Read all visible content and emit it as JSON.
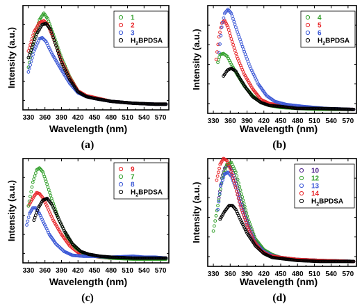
{
  "chart_data": [
    {
      "type": "scatter",
      "panel_label": "(a)",
      "xlabel": "Wavelength (nm)",
      "ylabel": "Intensity (a.u.)",
      "xlim": [
        320,
        585
      ],
      "ylim": [
        0,
        1.1
      ],
      "x_ticks": [
        330,
        360,
        390,
        420,
        450,
        480,
        510,
        540,
        570
      ],
      "y_ticks_labeled": false,
      "legend_position": "top-right",
      "series": [
        {
          "name": "1",
          "color": "#33a02c",
          "x": [
            330,
            340,
            350,
            358,
            365,
            375,
            390,
            405,
            420,
            435,
            450,
            480,
            520,
            560,
            580
          ],
          "y": [
            0.45,
            0.75,
            0.95,
            1.02,
            0.96,
            0.8,
            0.55,
            0.35,
            0.2,
            0.15,
            0.13,
            0.09,
            0.07,
            0.06,
            0.06
          ]
        },
        {
          "name": "2",
          "color": "#e8262a",
          "x": [
            330,
            340,
            350,
            358,
            365,
            375,
            390,
            405,
            420,
            435,
            450,
            480,
            520,
            560,
            580
          ],
          "y": [
            0.62,
            0.82,
            0.92,
            0.94,
            0.9,
            0.76,
            0.52,
            0.34,
            0.2,
            0.15,
            0.13,
            0.09,
            0.07,
            0.06,
            0.06
          ]
        },
        {
          "name": "3",
          "color": "#3a57d6",
          "x": [
            330,
            340,
            350,
            355,
            362,
            372,
            390,
            405,
            420,
            435,
            450,
            480,
            520,
            560,
            580
          ],
          "y": [
            0.4,
            0.62,
            0.75,
            0.76,
            0.72,
            0.6,
            0.42,
            0.28,
            0.18,
            0.14,
            0.12,
            0.09,
            0.07,
            0.06,
            0.06
          ]
        },
        {
          "name": "H2BPDSA",
          "label_main": "H",
          "label_sub": "2",
          "label_rest": "BPDSA",
          "color": "#000000",
          "x": [
            330,
            345,
            355,
            362,
            370,
            380,
            390,
            405,
            420,
            435,
            450,
            480,
            520,
            560,
            580
          ],
          "y": [
            0.55,
            0.8,
            0.9,
            0.91,
            0.85,
            0.68,
            0.5,
            0.32,
            0.19,
            0.14,
            0.12,
            0.09,
            0.07,
            0.06,
            0.06
          ]
        }
      ]
    },
    {
      "type": "scatter",
      "panel_label": "(b)",
      "xlabel": "Wavelength (nm)",
      "ylabel": "Intensity (a.u.)",
      "xlim": [
        320,
        585
      ],
      "ylim": [
        0,
        1.1
      ],
      "x_ticks": [
        330,
        360,
        390,
        420,
        450,
        480,
        510,
        540,
        570
      ],
      "y_ticks_labeled": false,
      "legend_position": "top-right",
      "series": [
        {
          "name": "4",
          "color": "#33a02c",
          "x": [
            338,
            342,
            348,
            355,
            362,
            372,
            385,
            400,
            415,
            430,
            450,
            480,
            520,
            560,
            580
          ],
          "y": [
            0.52,
            0.6,
            0.61,
            0.58,
            0.5,
            0.4,
            0.28,
            0.18,
            0.11,
            0.08,
            0.06,
            0.05,
            0.04,
            0.04,
            0.04
          ]
        },
        {
          "name": "5",
          "color": "#e8262a",
          "x": [
            335,
            340,
            345,
            350,
            356,
            362,
            372,
            385,
            400,
            415,
            430,
            450,
            480,
            520,
            580
          ],
          "y": [
            0.55,
            0.78,
            0.92,
            0.95,
            0.88,
            0.76,
            0.58,
            0.4,
            0.25,
            0.14,
            0.1,
            0.08,
            0.06,
            0.05,
            0.04
          ]
        },
        {
          "name": "6",
          "color": "#3a57d6",
          "x": [
            340,
            345,
            350,
            356,
            362,
            370,
            382,
            395,
            410,
            425,
            440,
            460,
            490,
            530,
            580
          ],
          "y": [
            0.62,
            0.88,
            1.02,
            1.06,
            1.02,
            0.88,
            0.68,
            0.48,
            0.3,
            0.18,
            0.12,
            0.09,
            0.07,
            0.05,
            0.04
          ]
        },
        {
          "name": "H2BPDSA",
          "label_main": "H",
          "label_sub": "2",
          "label_rest": "BPDSA",
          "color": "#000000",
          "x": [
            348,
            355,
            362,
            370,
            378,
            388,
            400,
            415,
            430,
            450,
            480,
            520,
            580
          ],
          "y": [
            0.38,
            0.44,
            0.46,
            0.43,
            0.35,
            0.26,
            0.17,
            0.11,
            0.08,
            0.07,
            0.05,
            0.05,
            0.04
          ]
        }
      ]
    },
    {
      "type": "scatter",
      "panel_label": "(c)",
      "xlabel": "Wavelength (nm)",
      "ylabel": "Intensity (a.u.)",
      "xlim": [
        320,
        585
      ],
      "ylim": [
        0,
        1.1
      ],
      "x_ticks": [
        330,
        360,
        390,
        420,
        450,
        480,
        510,
        540,
        570
      ],
      "y_ticks_labeled": false,
      "legend_position": "top-right",
      "series": [
        {
          "name": "9",
          "color": "#e8262a",
          "x": [
            330,
            340,
            345,
            350,
            357,
            365,
            375,
            390,
            405,
            420,
            440,
            460,
            480,
            520,
            580
          ],
          "y": [
            0.6,
            0.7,
            0.74,
            0.73,
            0.68,
            0.58,
            0.45,
            0.3,
            0.18,
            0.11,
            0.08,
            0.06,
            0.05,
            0.05,
            0.05
          ]
        },
        {
          "name": "7",
          "color": "#33a02c",
          "x": [
            330,
            338,
            345,
            350,
            356,
            362,
            372,
            385,
            400,
            415,
            430,
            450,
            480,
            520,
            580
          ],
          "y": [
            0.6,
            0.85,
            0.98,
            1.0,
            0.96,
            0.86,
            0.68,
            0.46,
            0.28,
            0.16,
            0.1,
            0.07,
            0.05,
            0.04,
            0.04
          ]
        },
        {
          "name": "8",
          "color": "#3a57d6",
          "x": [
            327,
            332,
            338,
            343,
            350,
            358,
            368,
            380,
            395,
            410,
            430,
            450,
            480,
            520,
            540,
            560,
            580
          ],
          "y": [
            0.4,
            0.52,
            0.58,
            0.58,
            0.52,
            0.42,
            0.3,
            0.2,
            0.12,
            0.08,
            0.07,
            0.07,
            0.06,
            0.07,
            0.06,
            0.06,
            0.05
          ]
        },
        {
          "name": "H2BPDSA",
          "label_main": "H",
          "label_sub": "2",
          "label_rest": "BPDSA",
          "color": "#000000",
          "x": [
            340,
            348,
            356,
            364,
            372,
            382,
            395,
            410,
            425,
            440,
            460,
            480,
            520,
            580
          ],
          "y": [
            0.45,
            0.58,
            0.66,
            0.68,
            0.62,
            0.5,
            0.34,
            0.2,
            0.12,
            0.09,
            0.07,
            0.06,
            0.05,
            0.05
          ]
        }
      ]
    },
    {
      "type": "scatter",
      "panel_label": "(d)",
      "xlabel": "Wavelength (nm)",
      "ylabel": "Intensity (a.u.)",
      "xlim": [
        320,
        585
      ],
      "ylim": [
        0,
        1.1
      ],
      "x_ticks": [
        330,
        360,
        390,
        420,
        450,
        480,
        510,
        540,
        570
      ],
      "y_ticks_labeled": false,
      "legend_position": "top-right",
      "series": [
        {
          "name": "10",
          "color": "#4b1f8a",
          "x": [
            340,
            345,
            350,
            356,
            362,
            370,
            380,
            392,
            405,
            420,
            435,
            450,
            480,
            520,
            580
          ],
          "y": [
            0.7,
            0.9,
            1.0,
            1.04,
            1.0,
            0.88,
            0.66,
            0.44,
            0.26,
            0.16,
            0.11,
            0.09,
            0.07,
            0.06,
            0.05
          ]
        },
        {
          "name": "12",
          "color": "#33a02c",
          "x": [
            330,
            338,
            346,
            354,
            362,
            370,
            380,
            392,
            405,
            420,
            435,
            450,
            480,
            520,
            580
          ],
          "y": [
            0.36,
            0.62,
            0.9,
            1.04,
            1.06,
            0.96,
            0.74,
            0.48,
            0.28,
            0.17,
            0.12,
            0.09,
            0.07,
            0.06,
            0.05
          ]
        },
        {
          "name": "13",
          "color": "#3a57d6",
          "x": [
            338,
            343,
            350,
            356,
            362,
            370,
            380,
            392,
            405,
            420,
            435,
            450,
            480,
            520,
            580
          ],
          "y": [
            0.58,
            0.82,
            0.94,
            0.96,
            0.92,
            0.8,
            0.6,
            0.4,
            0.24,
            0.15,
            0.11,
            0.09,
            0.07,
            0.06,
            0.05
          ]
        },
        {
          "name": "14",
          "color": "#e8262a",
          "x": [
            336,
            342,
            348,
            354,
            360,
            368,
            378,
            390,
            402,
            415,
            430,
            450,
            480,
            520,
            580
          ],
          "y": [
            0.88,
            1.04,
            1.1,
            1.08,
            1.0,
            0.84,
            0.62,
            0.42,
            0.26,
            0.16,
            0.11,
            0.09,
            0.07,
            0.06,
            0.05
          ]
        },
        {
          "name": "H2BPDSA",
          "label_main": "H",
          "label_sub": "2",
          "label_rest": "BPDSA",
          "color": "#000000",
          "x": [
            342,
            350,
            358,
            364,
            370,
            378,
            390,
            405,
            420,
            435,
            450,
            480,
            520,
            580
          ],
          "y": [
            0.48,
            0.56,
            0.62,
            0.62,
            0.58,
            0.48,
            0.34,
            0.21,
            0.13,
            0.09,
            0.08,
            0.06,
            0.05,
            0.05
          ]
        }
      ]
    }
  ]
}
